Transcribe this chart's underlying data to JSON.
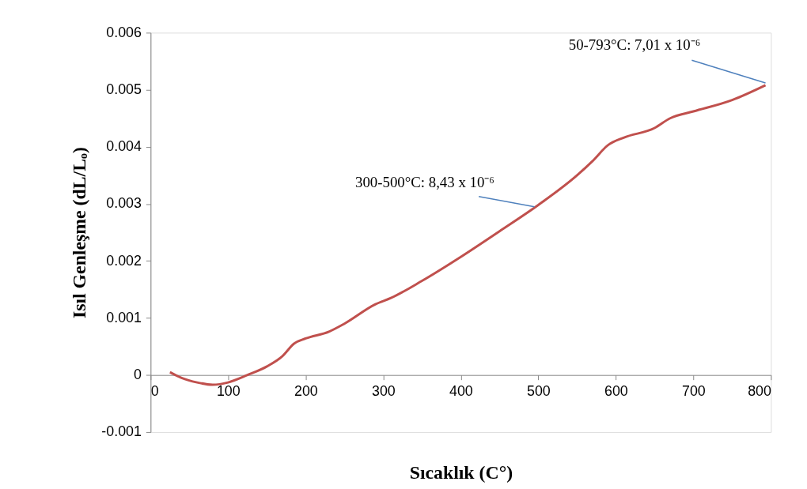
{
  "chart_data": {
    "type": "line",
    "xlabel": "Sıcaklık (C°)",
    "ylabel": "Isıl Genleşme (dL/Lₒ)",
    "x": [
      25,
      40,
      60,
      80,
      100,
      125,
      150,
      170,
      185,
      200,
      230,
      250,
      290,
      310,
      350,
      400,
      450,
      500,
      550,
      570,
      590,
      610,
      650,
      670,
      700,
      750,
      793
    ],
    "series": [
      {
        "color": "#c0504d",
        "values": [
          5e-05,
          -5e-05,
          -0.00013,
          -0.00017,
          -0.00013,
          0,
          0.00015,
          0.00033,
          0.00055,
          0.00064,
          0.00076,
          0.0009,
          0.00124,
          0.00135,
          0.00165,
          0.00207,
          0.00252,
          0.00298,
          0.0035,
          0.00375,
          0.00403,
          0.00416,
          0.00433,
          0.0045,
          0.00462,
          0.00482,
          0.00508
        ]
      }
    ],
    "xlim": [
      0,
      800
    ],
    "xticks": [
      0,
      100,
      200,
      300,
      400,
      500,
      600,
      700,
      800
    ],
    "ylim": [
      -0.001,
      0.006
    ],
    "yticks": [
      {
        "value": -0.001,
        "label": "-0.001"
      },
      {
        "value": 0,
        "label": "0"
      },
      {
        "value": 0.001,
        "label": "0.001"
      },
      {
        "value": 0.002,
        "label": "0.002"
      },
      {
        "value": 0.003,
        "label": "0.003"
      },
      {
        "value": 0.004,
        "label": "0.004"
      },
      {
        "value": 0.005,
        "label": "0.005"
      },
      {
        "value": 0.006,
        "label": "0.006"
      }
    ],
    "annotations": [
      {
        "text": "300-500°C: 8,43 x 10⁻⁶",
        "x": 495,
        "y": 0.00295
      },
      {
        "text": "50-793°C:  7,01 x 10⁻⁶",
        "x": 793,
        "y": 0.00512
      }
    ],
    "grid": false,
    "marker": "none",
    "line_style": "solid"
  }
}
